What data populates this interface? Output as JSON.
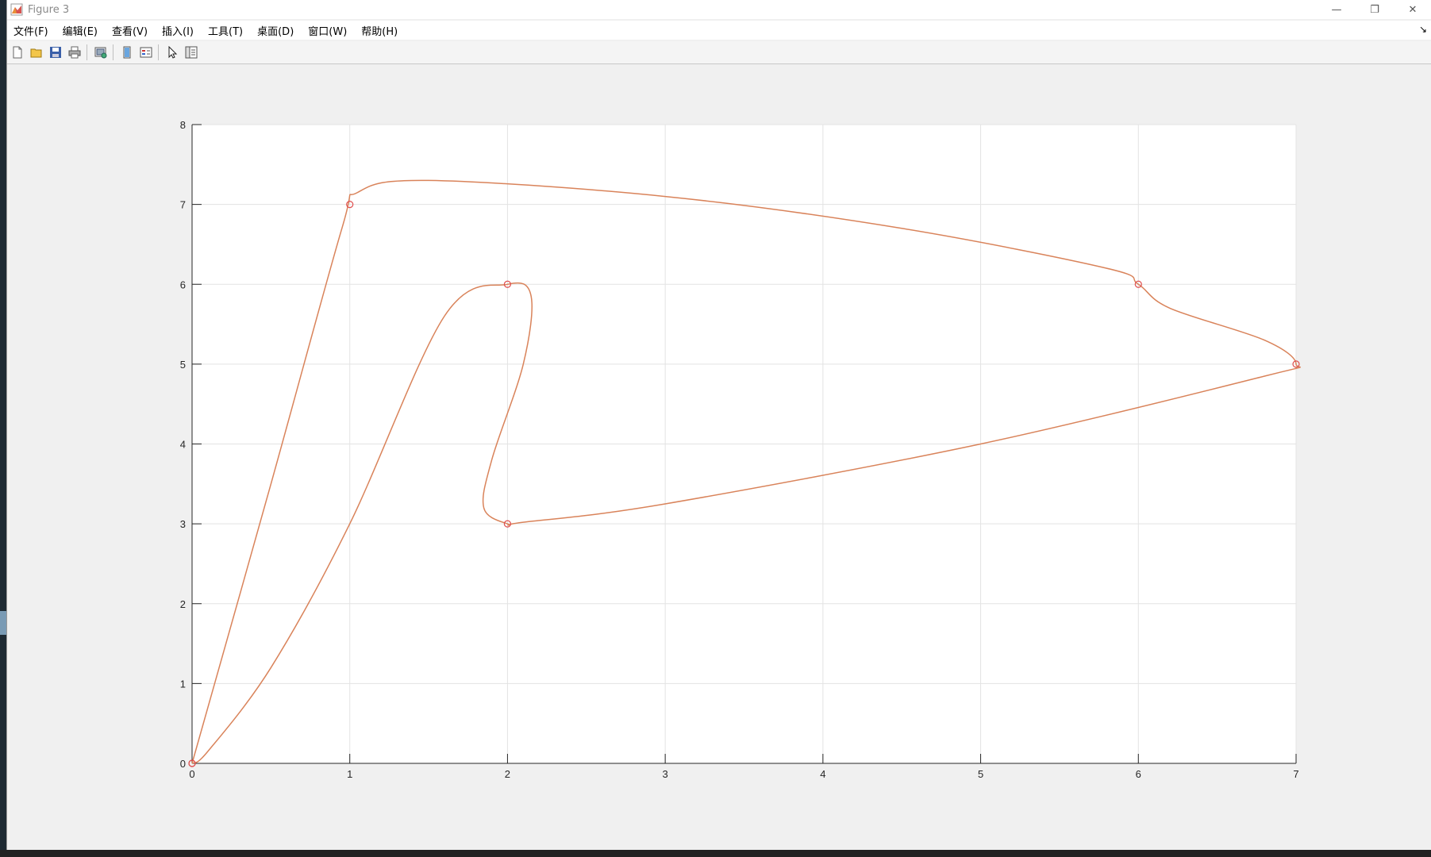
{
  "window": {
    "title": "Figure 3",
    "app_icon": "matlab-figure-icon",
    "controls": {
      "minimize": "—",
      "maximize": "❐",
      "close": "✕"
    }
  },
  "menubar": {
    "items": [
      "文件(F)",
      "编辑(E)",
      "查看(V)",
      "插入(I)",
      "工具(T)",
      "桌面(D)",
      "窗口(W)",
      "帮助(H)"
    ],
    "dock_arrow": "↘"
  },
  "toolbar": {
    "buttons": [
      "new-figure-icon",
      "open-file-icon",
      "save-icon",
      "print-icon",
      "link-plot-icon",
      "colorbar-icon",
      "legend-icon",
      "pointer-icon",
      "property-editor-icon"
    ]
  },
  "chart_data": {
    "type": "line",
    "title": "",
    "xlabel": "",
    "ylabel": "",
    "xlim": [
      0,
      7
    ],
    "ylim": [
      0,
      8
    ],
    "xticks": [
      "0",
      "1",
      "2",
      "3",
      "4",
      "5",
      "6",
      "7"
    ],
    "yticks": [
      "0",
      "1",
      "2",
      "3",
      "4",
      "5",
      "6",
      "7",
      "8"
    ],
    "grid": true,
    "colors": {
      "curve": "#d9835a",
      "markers": "#e05050",
      "grid": "#e3e3e3",
      "axes": "#262626"
    },
    "control_points": {
      "x": [
        0,
        1,
        6,
        7,
        2,
        2,
        0
      ],
      "y": [
        0,
        7,
        6,
        5,
        3,
        6,
        0
      ]
    },
    "curve": {
      "x": [
        0,
        0.5,
        0.95,
        1.05,
        1.5,
        3,
        4.5,
        5.8,
        6.0,
        6.2,
        6.8,
        7.0,
        6.8,
        5,
        3,
        2.1,
        2.0,
        1.85,
        1.9,
        2.1,
        2.15,
        2.0,
        1.6,
        1.0,
        0.5,
        0.1,
        0
      ],
      "y": [
        0,
        3.5,
        6.7,
        7.15,
        7.3,
        7.1,
        6.7,
        6.2,
        6.0,
        5.7,
        5.3,
        5.0,
        4.85,
        4.0,
        3.25,
        3.02,
        3.0,
        3.2,
        3.8,
        5.0,
        5.85,
        6.0,
        5.6,
        3.0,
        1.2,
        0.15,
        0
      ]
    }
  }
}
